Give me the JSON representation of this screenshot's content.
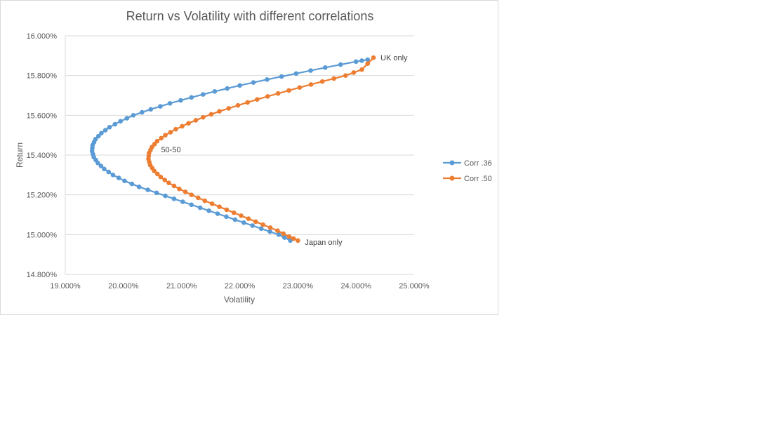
{
  "chart_data": {
    "type": "scatter",
    "title": "Return vs Volatility with different correlations",
    "xlabel": "Volatility",
    "ylabel": "Return",
    "xlim": [
      0.19,
      0.25
    ],
    "ylim": [
      0.148,
      0.16
    ],
    "x_ticks": [
      "19.000%",
      "20.000%",
      "21.000%",
      "22.000%",
      "23.000%",
      "24.000%",
      "25.000%"
    ],
    "y_ticks": [
      "16.000%",
      "15.800%",
      "15.600%",
      "15.400%",
      "15.200%",
      "15.000%",
      "14.800%"
    ],
    "grid": "horizontal",
    "legend_position": "right",
    "series": [
      {
        "name": "Corr .36",
        "color": "#5b9bd5",
        "points": [
          [
            0.2287,
            0.1497
          ],
          [
            0.2267,
            0.15
          ],
          [
            0.2237,
            0.1503
          ],
          [
            0.2207,
            0.1506
          ],
          [
            0.2177,
            0.1509
          ],
          [
            0.2147,
            0.1512
          ],
          [
            0.2117,
            0.1515
          ],
          [
            0.2087,
            0.1518
          ],
          [
            0.2057,
            0.1521
          ],
          [
            0.2027,
            0.1524
          ],
          [
            0.2002,
            0.1527
          ],
          [
            0.1982,
            0.153
          ],
          [
            0.1967,
            0.1533
          ],
          [
            0.1956,
            0.1536
          ],
          [
            0.1949,
            0.1539
          ],
          [
            0.1946,
            0.1542
          ],
          [
            0.1947,
            0.1545
          ],
          [
            0.1952,
            0.1548
          ],
          [
            0.1962,
            0.1551
          ],
          [
            0.1976,
            0.1554
          ],
          [
            0.1995,
            0.1557
          ],
          [
            0.2017,
            0.156
          ],
          [
            0.2047,
            0.1563
          ],
          [
            0.208,
            0.1566
          ],
          [
            0.2117,
            0.1569
          ],
          [
            0.2157,
            0.1572
          ],
          [
            0.22,
            0.1575
          ],
          [
            0.2247,
            0.1578
          ],
          [
            0.2297,
            0.1581
          ],
          [
            0.2347,
            0.1584
          ],
          [
            0.24,
            0.1587
          ],
          [
            0.242,
            0.1588
          ]
        ]
      },
      {
        "name": "Corr .50",
        "color": "#ed7d31",
        "points": [
          [
            0.23,
            0.1497
          ],
          [
            0.2285,
            0.1499
          ],
          [
            0.2265,
            0.1502
          ],
          [
            0.224,
            0.1505
          ],
          [
            0.2215,
            0.1508
          ],
          [
            0.219,
            0.1511
          ],
          [
            0.2165,
            0.1514
          ],
          [
            0.214,
            0.1517
          ],
          [
            0.2117,
            0.152
          ],
          [
            0.2096,
            0.1523
          ],
          [
            0.2078,
            0.1526
          ],
          [
            0.2064,
            0.1529
          ],
          [
            0.2053,
            0.1532
          ],
          [
            0.2046,
            0.1535
          ],
          [
            0.2043,
            0.1538
          ],
          [
            0.2044,
            0.1541
          ],
          [
            0.2049,
            0.1544
          ],
          [
            0.2058,
            0.1547
          ],
          [
            0.2072,
            0.155
          ],
          [
            0.209,
            0.1553
          ],
          [
            0.2112,
            0.1556
          ],
          [
            0.2137,
            0.1559
          ],
          [
            0.2165,
            0.1562
          ],
          [
            0.2197,
            0.1565
          ],
          [
            0.223,
            0.1568
          ],
          [
            0.2266,
            0.1571
          ],
          [
            0.2303,
            0.1574
          ],
          [
            0.2342,
            0.1577
          ],
          [
            0.2382,
            0.158
          ],
          [
            0.241,
            0.1583
          ],
          [
            0.243,
            0.1589
          ]
        ]
      }
    ],
    "annotations": [
      {
        "text": "UK only",
        "x": 0.243,
        "y": 0.1589
      },
      {
        "text": "50-50",
        "x": 0.2043,
        "y": 0.154
      },
      {
        "text": "Japan only",
        "x": 0.23,
        "y": 0.1497
      }
    ]
  }
}
